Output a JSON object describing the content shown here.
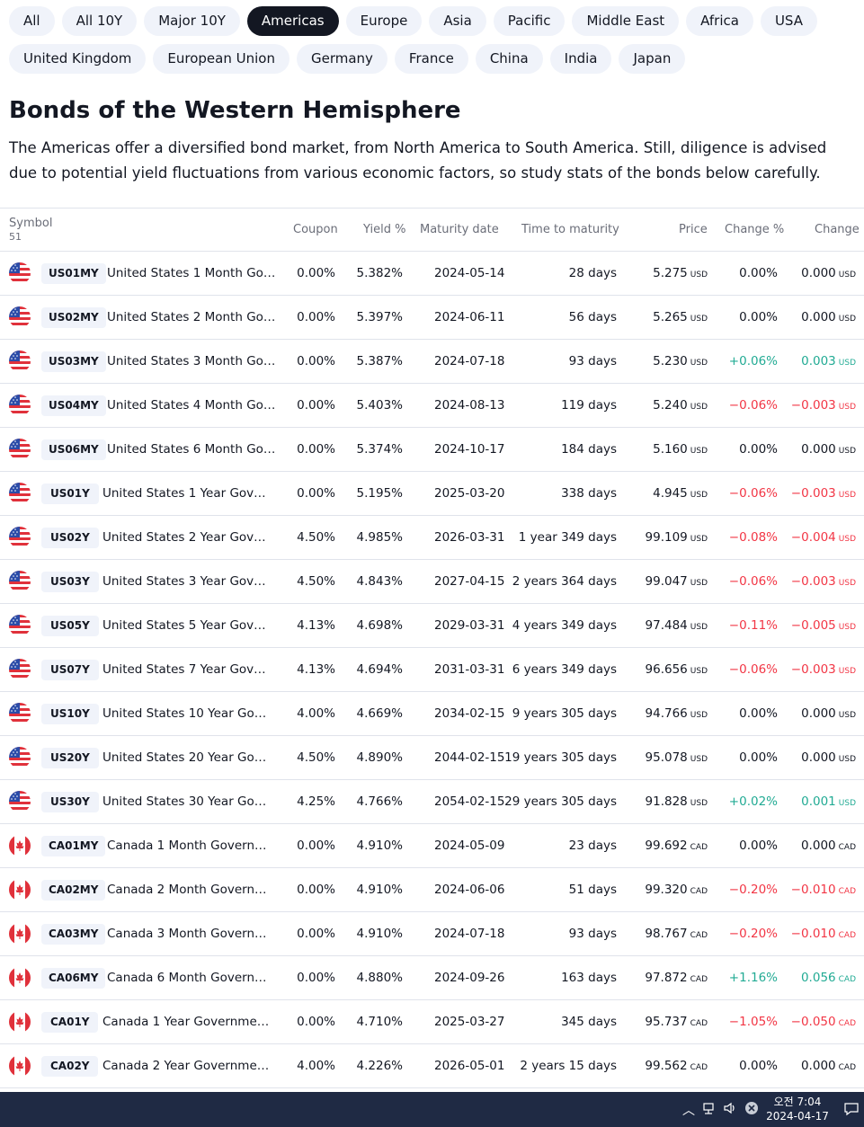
{
  "chips_row1": [
    "All",
    "All 10Y",
    "Major 10Y",
    "Americas",
    "Europe",
    "Asia",
    "Pacific",
    "Middle East",
    "Africa",
    "USA"
  ],
  "chips_row2": [
    "United Kingdom",
    "European Union",
    "Germany",
    "France",
    "China",
    "India",
    "Japan"
  ],
  "active_chip": "Americas",
  "heading": "Bonds of the Western Hemisphere",
  "description": "The Americas offer a diversified bond market, from North America to South America. Still, diligence is advised due to potential yield fluctuations from various economic factors, so study stats of the bonds below carefully.",
  "table": {
    "headers": {
      "symbol": "Symbol",
      "count": "51",
      "coupon": "Coupon",
      "yield": "Yield %",
      "maturity": "Maturity date",
      "time": "Time to maturity",
      "price": "Price",
      "change_pct": "Change %",
      "change": "Change"
    },
    "rows": [
      {
        "flag": "us",
        "ticker": "US01MY",
        "name": "United States 1 Month Gove…",
        "coupon": "0.00%",
        "yield": "5.382%",
        "maturity": "2024-05-14",
        "time": "28 days",
        "price": "5.275",
        "unit": "USD",
        "chg_pct": "0.00%",
        "chg": "0.000",
        "dir": "flat"
      },
      {
        "flag": "us",
        "ticker": "US02MY",
        "name": "United States 2 Month Gove…",
        "coupon": "0.00%",
        "yield": "5.397%",
        "maturity": "2024-06-11",
        "time": "56 days",
        "price": "5.265",
        "unit": "USD",
        "chg_pct": "0.00%",
        "chg": "0.000",
        "dir": "flat"
      },
      {
        "flag": "us",
        "ticker": "US03MY",
        "name": "United States 3 Month Gove…",
        "coupon": "0.00%",
        "yield": "5.387%",
        "maturity": "2024-07-18",
        "time": "93 days",
        "price": "5.230",
        "unit": "USD",
        "chg_pct": "+0.06%",
        "chg": "0.003",
        "dir": "pos"
      },
      {
        "flag": "us",
        "ticker": "US04MY",
        "name": "United States 4 Month Gove…",
        "coupon": "0.00%",
        "yield": "5.403%",
        "maturity": "2024-08-13",
        "time": "119 days",
        "price": "5.240",
        "unit": "USD",
        "chg_pct": "−0.06%",
        "chg": "−0.003",
        "dir": "neg"
      },
      {
        "flag": "us",
        "ticker": "US06MY",
        "name": "United States 6 Month Gove…",
        "coupon": "0.00%",
        "yield": "5.374%",
        "maturity": "2024-10-17",
        "time": "184 days",
        "price": "5.160",
        "unit": "USD",
        "chg_pct": "0.00%",
        "chg": "0.000",
        "dir": "flat"
      },
      {
        "flag": "us",
        "ticker": "US01Y",
        "name": "United States 1 Year Govern…",
        "coupon": "0.00%",
        "yield": "5.195%",
        "maturity": "2025-03-20",
        "time": "338 days",
        "price": "4.945",
        "unit": "USD",
        "chg_pct": "−0.06%",
        "chg": "−0.003",
        "dir": "neg"
      },
      {
        "flag": "us",
        "ticker": "US02Y",
        "name": "United States 2 Year Govern…",
        "coupon": "4.50%",
        "yield": "4.985%",
        "maturity": "2026-03-31",
        "time": "1 year 349 days",
        "price": "99.109",
        "unit": "USD",
        "chg_pct": "−0.08%",
        "chg": "−0.004",
        "dir": "neg"
      },
      {
        "flag": "us",
        "ticker": "US03Y",
        "name": "United States 3 Year Govern…",
        "coupon": "4.50%",
        "yield": "4.843%",
        "maturity": "2027-04-15",
        "time": "2 years 364 days",
        "price": "99.047",
        "unit": "USD",
        "chg_pct": "−0.06%",
        "chg": "−0.003",
        "dir": "neg"
      },
      {
        "flag": "us",
        "ticker": "US05Y",
        "name": "United States 5 Year Govern…",
        "coupon": "4.13%",
        "yield": "4.698%",
        "maturity": "2029-03-31",
        "time": "4 years 349 days",
        "price": "97.484",
        "unit": "USD",
        "chg_pct": "−0.11%",
        "chg": "−0.005",
        "dir": "neg"
      },
      {
        "flag": "us",
        "ticker": "US07Y",
        "name": "United States 7 Year Govern…",
        "coupon": "4.13%",
        "yield": "4.694%",
        "maturity": "2031-03-31",
        "time": "6 years 349 days",
        "price": "96.656",
        "unit": "USD",
        "chg_pct": "−0.06%",
        "chg": "−0.003",
        "dir": "neg"
      },
      {
        "flag": "us",
        "ticker": "US10Y",
        "name": "United States 10 Year Gover…",
        "coupon": "4.00%",
        "yield": "4.669%",
        "maturity": "2034-02-15",
        "time": "9 years 305 days",
        "price": "94.766",
        "unit": "USD",
        "chg_pct": "0.00%",
        "chg": "0.000",
        "dir": "flat"
      },
      {
        "flag": "us",
        "ticker": "US20Y",
        "name": "United States 20 Year Gover…",
        "coupon": "4.50%",
        "yield": "4.890%",
        "maturity": "2044-02-15",
        "time": "19 years 305 days",
        "price": "95.078",
        "unit": "USD",
        "chg_pct": "0.00%",
        "chg": "0.000",
        "dir": "flat"
      },
      {
        "flag": "us",
        "ticker": "US30Y",
        "name": "United States 30 Year Gover…",
        "coupon": "4.25%",
        "yield": "4.766%",
        "maturity": "2054-02-15",
        "time": "29 years 305 days",
        "price": "91.828",
        "unit": "USD",
        "chg_pct": "+0.02%",
        "chg": "0.001",
        "dir": "pos"
      },
      {
        "flag": "ca",
        "ticker": "CA01MY",
        "name": "Canada 1 Month Governmen…",
        "coupon": "0.00%",
        "yield": "4.910%",
        "maturity": "2024-05-09",
        "time": "23 days",
        "price": "99.692",
        "unit": "CAD",
        "chg_pct": "0.00%",
        "chg": "0.000",
        "dir": "flat"
      },
      {
        "flag": "ca",
        "ticker": "CA02MY",
        "name": "Canada 2 Month Governmen…",
        "coupon": "0.00%",
        "yield": "4.910%",
        "maturity": "2024-06-06",
        "time": "51 days",
        "price": "99.320",
        "unit": "CAD",
        "chg_pct": "−0.20%",
        "chg": "−0.010",
        "dir": "neg"
      },
      {
        "flag": "ca",
        "ticker": "CA03MY",
        "name": "Canada 3 Month Governmen…",
        "coupon": "0.00%",
        "yield": "4.910%",
        "maturity": "2024-07-18",
        "time": "93 days",
        "price": "98.767",
        "unit": "CAD",
        "chg_pct": "−0.20%",
        "chg": "−0.010",
        "dir": "neg"
      },
      {
        "flag": "ca",
        "ticker": "CA06MY",
        "name": "Canada 6 Month Governmen…",
        "coupon": "0.00%",
        "yield": "4.880%",
        "maturity": "2024-09-26",
        "time": "163 days",
        "price": "97.872",
        "unit": "CAD",
        "chg_pct": "+1.16%",
        "chg": "0.056",
        "dir": "pos"
      },
      {
        "flag": "ca",
        "ticker": "CA01Y",
        "name": "Canada 1 Year Government …",
        "coupon": "0.00%",
        "yield": "4.710%",
        "maturity": "2025-03-27",
        "time": "345 days",
        "price": "95.737",
        "unit": "CAD",
        "chg_pct": "−1.05%",
        "chg": "−0.050",
        "dir": "neg"
      },
      {
        "flag": "ca",
        "ticker": "CA02Y",
        "name": "Canada 2 Year Government …",
        "coupon": "4.00%",
        "yield": "4.226%",
        "maturity": "2026-05-01",
        "time": "2 years 15 days",
        "price": "99.562",
        "unit": "CAD",
        "chg_pct": "0.00%",
        "chg": "0.000",
        "dir": "flat"
      }
    ]
  },
  "taskbar": {
    "time": "오전 7:04",
    "date": "2024-04-17",
    "icons": [
      "chevron-up-icon",
      "network-icon",
      "volume-icon",
      "close-circle-icon",
      "notification-icon"
    ]
  },
  "colors": {
    "positive": "#22ab94",
    "negative": "#f23645",
    "chip_bg": "#f0f3fa",
    "chip_active": "#131722"
  }
}
